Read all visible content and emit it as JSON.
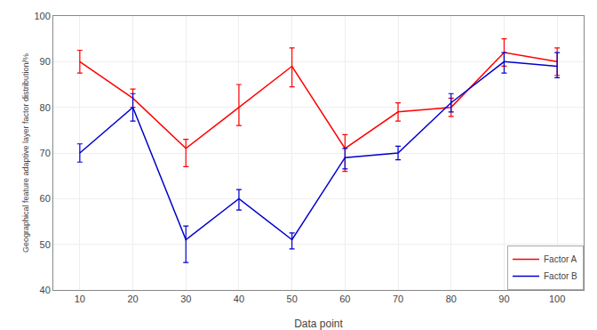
{
  "chart_data": {
    "type": "line",
    "x": [
      10,
      20,
      30,
      40,
      50,
      60,
      70,
      80,
      90,
      100
    ],
    "series": [
      {
        "name": "Factor A",
        "color": "#FF0000",
        "values": [
          90,
          82,
          71,
          80,
          89,
          71,
          79,
          80,
          92,
          90
        ],
        "err_hi": [
          2.5,
          2,
          2,
          5,
          4,
          3,
          2,
          2,
          3,
          3
        ],
        "err_lo": [
          2.5,
          2,
          4,
          4,
          4.5,
          5,
          2,
          2,
          3,
          3
        ]
      },
      {
        "name": "Factor B",
        "color": "#0000CC",
        "values": [
          70,
          80,
          51,
          60,
          51,
          69,
          70,
          81,
          90,
          89
        ],
        "err_hi": [
          2,
          3,
          3,
          2,
          1.5,
          2,
          1.5,
          2,
          2,
          3
        ],
        "err_lo": [
          2,
          3,
          5,
          2.5,
          2,
          2.5,
          1.5,
          2,
          2.5,
          2.5
        ]
      }
    ],
    "xlabel": "Data point",
    "ylabel": "Geographical feature adaptive layer factor distribution/%",
    "xlim": [
      5,
      105
    ],
    "ylim": [
      40,
      100
    ],
    "xticks": [
      10,
      20,
      30,
      40,
      50,
      60,
      70,
      80,
      90,
      100
    ],
    "yticks": [
      40,
      50,
      60,
      70,
      80,
      90,
      100
    ],
    "grid": true,
    "legend": "lower right"
  }
}
